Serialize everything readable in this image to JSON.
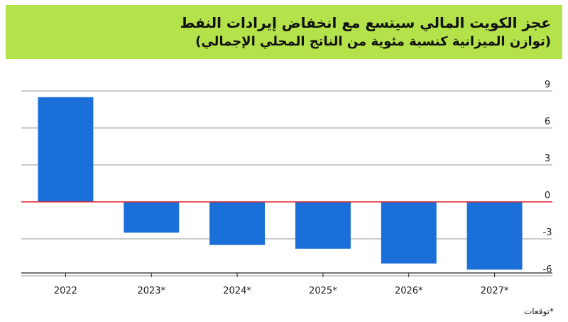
{
  "header": {
    "title": "عجز الكويت المالي سيتسع مع انخفاض إيرادات النفط",
    "subtitle": "(توازن الميزانية كنسبة مئوية من الناتج المحلي الإجمالي)"
  },
  "footnote": "*توقعات",
  "colors": {
    "bar": "#1a6fd8",
    "header_bg": "#b3e24a",
    "zero_line": "#e0232e",
    "grid": "#9a9a9a"
  },
  "chart_data": {
    "type": "bar",
    "categories": [
      "2022",
      "2023*",
      "2024*",
      "2025*",
      "2026*",
      "2027*"
    ],
    "values": [
      8.5,
      -2.5,
      -3.5,
      -3.8,
      -5.0,
      -5.5
    ],
    "yticks": [
      9,
      6,
      3,
      0,
      -3,
      -6
    ],
    "ylim": [
      -6,
      9
    ],
    "grid": true,
    "xlabel": "",
    "ylabel": ""
  }
}
